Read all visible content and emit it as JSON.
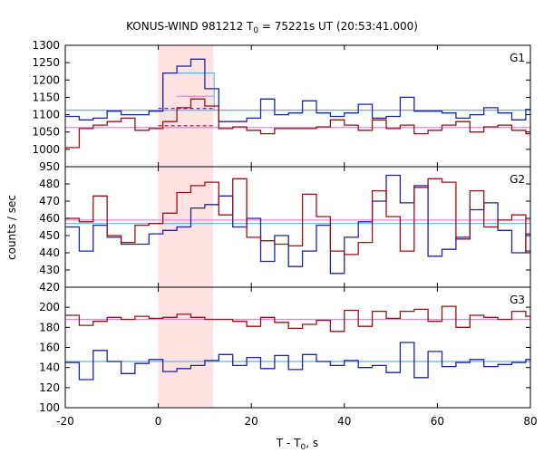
{
  "chart_data": {
    "type": "line",
    "title_prefix": "KONUS-WIND 981212 T",
    "title_sub": "0",
    "title_suffix": " = 75221s UT (20:53:41.000)",
    "xlabel_prefix": "T - T",
    "xlabel_sub": "0",
    "xlabel_suffix": ", s",
    "ylabel": "counts / sec",
    "xlim": [
      -20,
      80
    ],
    "x_ticks": [
      "-20",
      "0",
      "20",
      "40",
      "60",
      "80"
    ],
    "x_tick_values": [
      -20,
      0,
      20,
      40,
      60,
      80
    ],
    "highlight_interval": [
      0,
      11.8
    ],
    "colors": {
      "series_a": "#1e22a8",
      "series_b": "#9b1010",
      "fit_a": "#56b8e8",
      "fit_b": "#d58ce0",
      "dashed_a": "#1e22a8",
      "dashed_b": "#9b1010",
      "highlight": "#ffe3e3"
    },
    "panels": [
      {
        "label": "G1",
        "ylim": [
          950,
          1300
        ],
        "y_ticks": [
          950,
          1000,
          1050,
          1100,
          1150,
          1200,
          1250,
          1300
        ],
        "edges": [
          -20,
          -17,
          -14,
          -11,
          -8,
          -5,
          -2,
          1,
          4,
          7,
          10,
          13,
          16,
          19,
          22,
          25,
          28,
          31,
          34,
          37,
          40,
          43,
          46,
          49,
          52,
          55,
          58,
          61,
          64,
          67,
          70,
          73,
          76,
          79,
          80
        ],
        "series_a": [
          1095,
          1085,
          1090,
          1110,
          1100,
          1100,
          1110,
          1220,
          1240,
          1260,
          1175,
          1080,
          1080,
          1090,
          1145,
          1100,
          1105,
          1140,
          1105,
          1095,
          1105,
          1130,
          1090,
          1095,
          1150,
          1110,
          1110,
          1105,
          1090,
          1100,
          1120,
          1105,
          1085,
          1115
        ],
        "series_b": [
          1005,
          1060,
          1070,
          1080,
          1090,
          1055,
          1060,
          1080,
          1120,
          1145,
          1125,
          1060,
          1065,
          1055,
          1045,
          1060,
          1060,
          1060,
          1065,
          1085,
          1070,
          1055,
          1085,
          1060,
          1070,
          1045,
          1055,
          1070,
          1080,
          1050,
          1065,
          1070,
          1055,
          1045
        ],
        "fit_a": 1113,
        "fit_b": 1063,
        "excess_a": [
          [
            1,
            1220
          ],
          [
            12,
            1220
          ]
        ],
        "excess_b": [
          [
            4,
            1153
          ],
          [
            12,
            1153
          ]
        ],
        "dashed_a": [
          [
            0,
            1118
          ],
          [
            12,
            1118
          ]
        ],
        "dashed_b": [
          [
            0,
            1068
          ],
          [
            12,
            1068
          ]
        ]
      },
      {
        "label": "G2",
        "ylim": [
          420,
          490
        ],
        "y_ticks": [
          420,
          430,
          440,
          450,
          460,
          470,
          480
        ],
        "edges": [
          -20,
          -17,
          -14,
          -11,
          -8,
          -5,
          -2,
          1,
          4,
          7,
          10,
          13,
          16,
          19,
          22,
          25,
          28,
          31,
          34,
          37,
          40,
          43,
          46,
          49,
          52,
          55,
          58,
          61,
          64,
          67,
          70,
          73,
          76,
          79,
          80
        ],
        "series_a": [
          455,
          441,
          456,
          449,
          445,
          445,
          451,
          453,
          455,
          466,
          468,
          473,
          455,
          460,
          435,
          450,
          432,
          441,
          456,
          428,
          449,
          458,
          470,
          485,
          469,
          479,
          438,
          442,
          449,
          465,
          469,
          453,
          440,
          451
        ],
        "series_b": [
          460,
          458,
          473,
          450,
          446,
          456,
          457,
          463,
          475,
          479,
          481,
          462,
          483,
          449,
          447,
          445,
          444,
          474,
          461,
          441,
          439,
          446,
          476,
          461,
          441,
          478,
          483,
          481,
          448,
          476,
          455,
          459,
          462,
          441
        ],
        "fit_a": 457,
        "fit_b": 459
      },
      {
        "label": "G3",
        "ylim": [
          100,
          220
        ],
        "y_ticks": [
          100,
          120,
          140,
          160,
          180,
          200
        ],
        "edges": [
          -20,
          -17,
          -14,
          -11,
          -8,
          -5,
          -2,
          1,
          4,
          7,
          10,
          13,
          16,
          19,
          22,
          25,
          28,
          31,
          34,
          37,
          40,
          43,
          46,
          49,
          52,
          55,
          58,
          61,
          64,
          67,
          70,
          73,
          76,
          79,
          80
        ],
        "series_a": [
          145,
          128,
          157,
          146,
          134,
          144,
          148,
          136,
          139,
          142,
          147,
          153,
          142,
          150,
          139,
          152,
          138,
          153,
          146,
          142,
          147,
          140,
          142,
          135,
          165,
          130,
          156,
          141,
          145,
          148,
          141,
          143,
          145,
          148
        ],
        "series_b": [
          192,
          182,
          186,
          190,
          188,
          191,
          189,
          190,
          193,
          190,
          188,
          188,
          186,
          181,
          190,
          185,
          179,
          183,
          187,
          176,
          197,
          181,
          196,
          189,
          196,
          198,
          186,
          201,
          180,
          192,
          190,
          188,
          196,
          191
        ],
        "fit_a": 146,
        "fit_b": 188
      }
    ]
  }
}
